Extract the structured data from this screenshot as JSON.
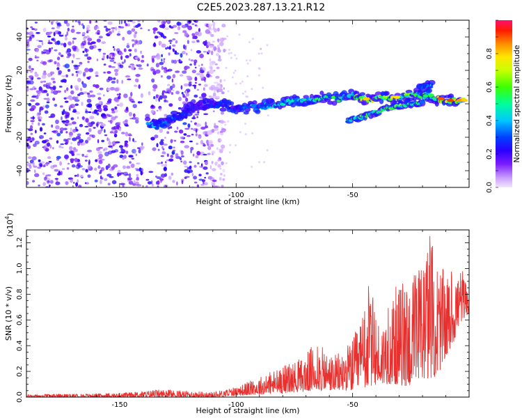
{
  "title": "C2E5.2023.287.13.21.R12",
  "chart_data": [
    {
      "type": "heatmap",
      "title": "C2E5.2023.287.13.21.R12",
      "xlabel": "Height of straight line (km)",
      "ylabel": "Frequency (Hz)",
      "xlim": [
        -190,
        0
      ],
      "ylim": [
        -50,
        50
      ],
      "x_ticks": [
        -150,
        -100,
        -50
      ],
      "y_ticks": [
        -40,
        -20,
        0,
        20,
        40
      ],
      "colorbar": {
        "label": "Normalized spectral amplitude",
        "ticks": [
          "0.0",
          "0.2",
          "0.4",
          "0.6",
          "0.8"
        ],
        "range": [
          0,
          1
        ],
        "colors": [
          "#f0e0ff",
          "#d8b4ff",
          "#8a2be2",
          "#4b00ff",
          "#0000ff",
          "#00bfff",
          "#00ff7f",
          "#7fff00",
          "#ffff00",
          "#ff8c00",
          "#ff0000",
          "#ff1493"
        ]
      },
      "ridge": [
        {
          "x": -138,
          "y": -11,
          "amp": 0.35
        },
        {
          "x": -134,
          "y": -14,
          "amp": 0.45
        },
        {
          "x": -116,
          "y": 0,
          "amp": 0.25
        },
        {
          "x": -105,
          "y": -1,
          "amp": 0.3
        },
        {
          "x": -100,
          "y": -3,
          "amp": 0.28
        },
        {
          "x": -92,
          "y": -2,
          "amp": 0.45
        },
        {
          "x": -85,
          "y": -1,
          "amp": 0.5
        },
        {
          "x": -78,
          "y": 1,
          "amp": 0.5
        },
        {
          "x": -70,
          "y": 2,
          "amp": 0.55
        },
        {
          "x": -62,
          "y": 4,
          "amp": 0.55
        },
        {
          "x": -56,
          "y": 3,
          "amp": 0.6
        },
        {
          "x": -50,
          "y": 5,
          "amp": 0.6
        },
        {
          "x": -44,
          "y": 2,
          "amp": 0.8
        },
        {
          "x": -37,
          "y": 4,
          "amp": 0.7
        },
        {
          "x": -30,
          "y": 3,
          "amp": 0.75
        },
        {
          "x": -24,
          "y": 6,
          "amp": 0.7
        },
        {
          "x": -18,
          "y": 5,
          "amp": 0.65
        },
        {
          "x": -12,
          "y": 2,
          "amp": 0.9
        },
        {
          "x": -6,
          "y": 2,
          "amp": 0.85
        },
        {
          "x": -2,
          "y": 2,
          "amp": 0.8
        }
      ],
      "secondary_ridge": [
        {
          "x": -52,
          "y": -10,
          "amp": 0.55
        },
        {
          "x": -44,
          "y": -7,
          "amp": 0.6
        },
        {
          "x": -36,
          "y": -3,
          "amp": 0.65
        },
        {
          "x": -28,
          "y": -1,
          "amp": 0.65
        },
        {
          "x": -20,
          "y": 1,
          "amp": 0.6
        },
        {
          "x": -16,
          "y": 12,
          "amp": 0.4
        },
        {
          "x": -22,
          "y": 10,
          "amp": 0.4
        }
      ],
      "scatter_region": {
        "x_range": [
          -190,
          -105
        ],
        "y_range": [
          -50,
          50
        ],
        "amp": 0.15
      }
    },
    {
      "type": "line",
      "xlabel": "Height of straight line (km)",
      "ylabel": "SNR (10 * v/v)",
      "y_multiplier_label": "(x10",
      "y_multiplier_exp": "4",
      "xlim": [
        -190,
        0
      ],
      "ylim": [
        0,
        1.3
      ],
      "x_ticks": [
        -150,
        -100,
        -50
      ],
      "y_ticks": [
        0.0,
        0.2,
        0.4,
        0.6,
        0.8,
        1.0,
        1.2
      ],
      "series": [
        {
          "color": "#e8312f",
          "envelope": [
            {
              "x": -190,
              "base": 0.0,
              "peak": 0.02
            },
            {
              "x": -150,
              "base": 0.0,
              "peak": 0.03
            },
            {
              "x": -133,
              "base": 0.0,
              "peak": 0.06
            },
            {
              "x": -110,
              "base": 0.0,
              "peak": 0.04
            },
            {
              "x": -100,
              "base": 0.01,
              "peak": 0.08
            },
            {
              "x": -90,
              "base": 0.02,
              "peak": 0.16
            },
            {
              "x": -80,
              "base": 0.03,
              "peak": 0.25
            },
            {
              "x": -72,
              "base": 0.04,
              "peak": 0.3
            },
            {
              "x": -66,
              "base": 0.05,
              "peak": 0.43
            },
            {
              "x": -58,
              "base": 0.05,
              "peak": 0.32
            },
            {
              "x": -50,
              "base": 0.05,
              "peak": 0.45
            },
            {
              "x": -47,
              "base": 0.05,
              "peak": 0.6
            },
            {
              "x": -43,
              "base": 0.08,
              "peak": 0.9
            },
            {
              "x": -38,
              "base": 0.1,
              "peak": 0.55
            },
            {
              "x": -32,
              "base": 0.1,
              "peak": 0.85
            },
            {
              "x": -26,
              "base": 0.08,
              "peak": 0.95
            },
            {
              "x": -20,
              "base": 0.12,
              "peak": 1.05
            },
            {
              "x": -17,
              "base": 0.15,
              "peak": 1.27
            },
            {
              "x": -14,
              "base": 0.15,
              "peak": 1.1
            },
            {
              "x": -10,
              "base": 0.3,
              "peak": 0.95
            },
            {
              "x": -6,
              "base": 0.45,
              "peak": 1.0
            },
            {
              "x": -3,
              "base": 0.6,
              "peak": 1.02
            },
            {
              "x": 0,
              "base": 0.65,
              "peak": 0.75
            }
          ]
        }
      ]
    }
  ]
}
